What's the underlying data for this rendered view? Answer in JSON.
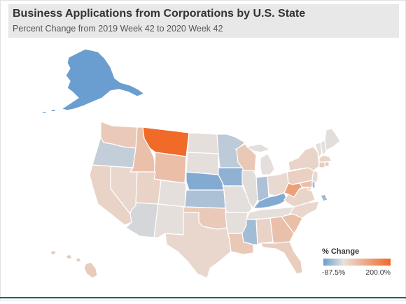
{
  "title": "Business Applications from Corporations by U.S. State",
  "subtitle": "Percent Change from 2019 Week 42 to 2020 Week 42",
  "legend": {
    "title": "% Change",
    "min_label": "-87.5%",
    "max_label": "200.0%",
    "min_value": -87.5,
    "max_value": 200.0,
    "color_low": "#6a9ed0",
    "color_mid": "#e8e1dc",
    "color_high": "#f06a28"
  },
  "states": {
    "AK": -87.5,
    "HI": 18,
    "WA": 20,
    "OR": -25,
    "CA": 10,
    "ID": 32,
    "NV": 6,
    "MT": 200,
    "WY": 35,
    "UT": 10,
    "AZ": -14,
    "CO": -3,
    "NM": -2,
    "ND": -2,
    "SD": -2,
    "NE": -70,
    "KS": -42,
    "OK": 20,
    "TX": 6,
    "MN": -30,
    "IA": -62,
    "MO": -3,
    "AR": -2,
    "LA": 22,
    "WI": 22,
    "IL": -5,
    "MI": -3,
    "IN": -42,
    "OH": 4,
    "KY": -70,
    "TN": -2,
    "MS": -48,
    "AL": 10,
    "GA": 32,
    "FL": 16,
    "SC": 34,
    "NC": 6,
    "VA": 8,
    "WV": 85,
    "PA": 12,
    "NY": 8,
    "VT": -2,
    "NH": -2,
    "ME": -4,
    "MA": 8,
    "RI": 22,
    "CT": 18,
    "NJ": 5,
    "DE": -52,
    "MD": 34,
    "DC": 30
  }
}
